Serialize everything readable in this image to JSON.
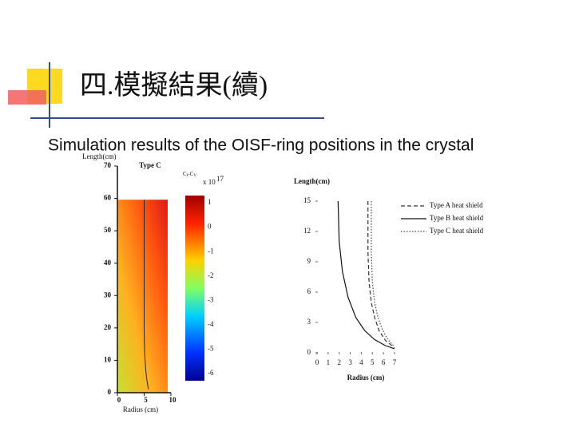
{
  "slide": {
    "title": "四.模擬結果(續)",
    "subtitle": "Simulation results of the OISF-ring positions in the crystal"
  },
  "chart_data": [
    {
      "type": "heatmap",
      "title": "Type C",
      "x_label": "Radius (cm)",
      "y_label": "Length(cm)",
      "xlim": [
        0,
        10
      ],
      "ylim": [
        0,
        70
      ],
      "xticks": [
        0,
        5,
        10
      ],
      "yticks": [
        0,
        10,
        20,
        30,
        40,
        50,
        60,
        70
      ],
      "crystal_radius": 9.4,
      "crystal_length": 59.6,
      "colorbar_label": [
        "C",
        "I",
        "-C",
        "V"
      ],
      "colorbar_exponent": [
        "x 10",
        "17"
      ],
      "clim": [
        -6.3,
        1.3
      ],
      "cticks": [
        1,
        0,
        -1,
        -2,
        -3,
        -4,
        -5,
        -6
      ],
      "series": [
        {
          "color": "#222222",
          "x": [
            5.0,
            5.0,
            5.0,
            5.1,
            5.3,
            5.5,
            5.8
          ],
          "values": [
            59.6,
            40,
            20,
            12,
            7,
            4,
            1
          ]
        }
      ]
    },
    {
      "type": "line",
      "x_label": "Radius (cm)",
      "y_label": "Length(cm)",
      "xlim": [
        0,
        7
      ],
      "ylim": [
        0,
        15
      ],
      "xticks": [
        0,
        1,
        2,
        3,
        4,
        5,
        6,
        7
      ],
      "yticks": [
        0,
        3,
        6,
        9,
        12,
        15
      ],
      "legend": "top-right",
      "series": [
        {
          "name": "Type A heat shield",
          "color": "#333333",
          "dash": "5,3",
          "x": [
            4.6,
            4.6,
            4.7,
            4.9,
            5.2,
            5.6,
            6.2,
            7.0
          ],
          "values": [
            15,
            10,
            7,
            5,
            3.5,
            2.2,
            1.2,
            0.5
          ]
        },
        {
          "name": "Type B heat shield",
          "color": "#111111",
          "dash": "none",
          "x": [
            1.9,
            2.0,
            2.3,
            2.8,
            3.5,
            4.3,
            5.2,
            6.2,
            7.0
          ],
          "values": [
            15,
            11,
            8,
            5.5,
            3.5,
            2.2,
            1.3,
            0.7,
            0.4
          ]
        },
        {
          "name": "Type C heat shield",
          "color": "#444444",
          "dash": "1.5,2",
          "x": [
            4.9,
            4.9,
            5.0,
            5.2,
            5.5,
            5.9,
            6.4,
            7.0
          ],
          "values": [
            15,
            10,
            7,
            5,
            3.5,
            2.3,
            1.3,
            0.6
          ]
        }
      ]
    }
  ]
}
